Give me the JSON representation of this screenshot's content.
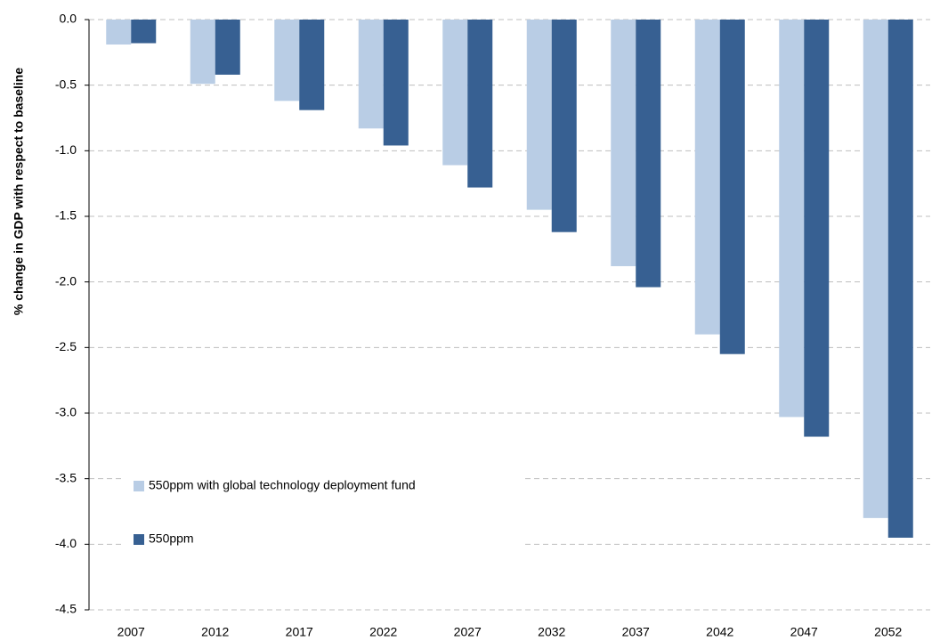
{
  "chart_data": {
    "type": "bar",
    "y_label": "% change in GDP with respect to baseline",
    "categories": [
      "2007",
      "2012",
      "2017",
      "2022",
      "2027",
      "2032",
      "2037",
      "2042",
      "2047",
      "2052"
    ],
    "series": [
      {
        "name": "550ppm with global technology deployment fund",
        "color": "#b9cde5",
        "values": [
          -0.19,
          -0.49,
          -0.62,
          -0.83,
          -1.11,
          -1.45,
          -1.88,
          -2.4,
          -3.03,
          -3.8
        ]
      },
      {
        "name": "550ppm",
        "color": "#376092",
        "values": [
          -0.18,
          -0.42,
          -0.69,
          -0.96,
          -1.28,
          -1.62,
          -2.04,
          -2.55,
          -3.18,
          -3.95
        ]
      }
    ],
    "ylim": [
      -4.5,
      0
    ],
    "yticks": [
      {
        "value": 0,
        "label": "0.0"
      },
      -0.5,
      {
        "value": -1,
        "label": "-1.0"
      },
      -1.5,
      {
        "value": -2,
        "label": "-2.0"
      },
      -2.5,
      {
        "value": -3,
        "label": "-3.0"
      },
      -3.5,
      {
        "value": -4,
        "label": "-4.0"
      },
      -4.5
    ],
    "grid": true,
    "legend": "lower-left"
  }
}
